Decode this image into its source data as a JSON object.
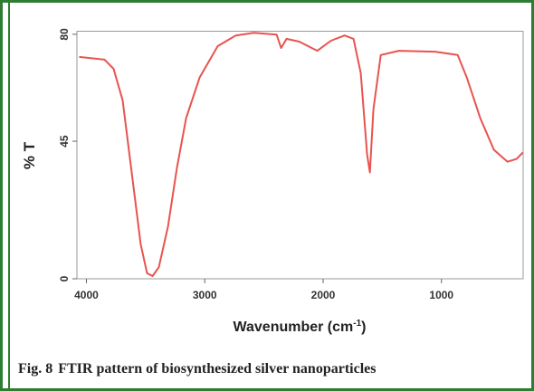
{
  "chart_data": {
    "type": "line",
    "y_label": "% T",
    "x_label": [
      "Wavenumber (cm",
      "-1",
      ")"
    ],
    "caption_label": "Fig. 8",
    "caption": "FTIR pattern of biosynthesized silver nanoparticles",
    "xlim": [
      4080,
      310
    ],
    "ylim": [
      0,
      81
    ],
    "xticks": [
      4000,
      3000,
      2000,
      1000
    ],
    "yticks": [
      0,
      45,
      80
    ],
    "series": [
      {
        "color": "#e8534f",
        "x": [
          4061,
          3847,
          3770,
          3694,
          3617,
          3541,
          3487,
          3441,
          3388,
          3311,
          3235,
          3158,
          3044,
          2891,
          2738,
          2585,
          2393,
          2355,
          2309,
          2202,
          2049,
          1934,
          1819,
          1743,
          1682,
          1628,
          1605,
          1575,
          1513,
          1360,
          1054,
          863,
          786,
          672,
          557,
          442,
          365,
          312
        ],
        "values": [
          72.6,
          71.7,
          68.7,
          58.4,
          34.8,
          11.2,
          1.8,
          0.9,
          3.8,
          17.1,
          36.3,
          52.5,
          65.8,
          76.1,
          79.6,
          80.5,
          79.9,
          75.5,
          78.5,
          77.6,
          74.6,
          77.9,
          79.6,
          78.5,
          67.3,
          40.7,
          34.8,
          55.5,
          73.2,
          74.6,
          74.3,
          73.2,
          65.8,
          52.5,
          42.2,
          38.3,
          39.2,
          41.3
        ]
      }
    ]
  }
}
